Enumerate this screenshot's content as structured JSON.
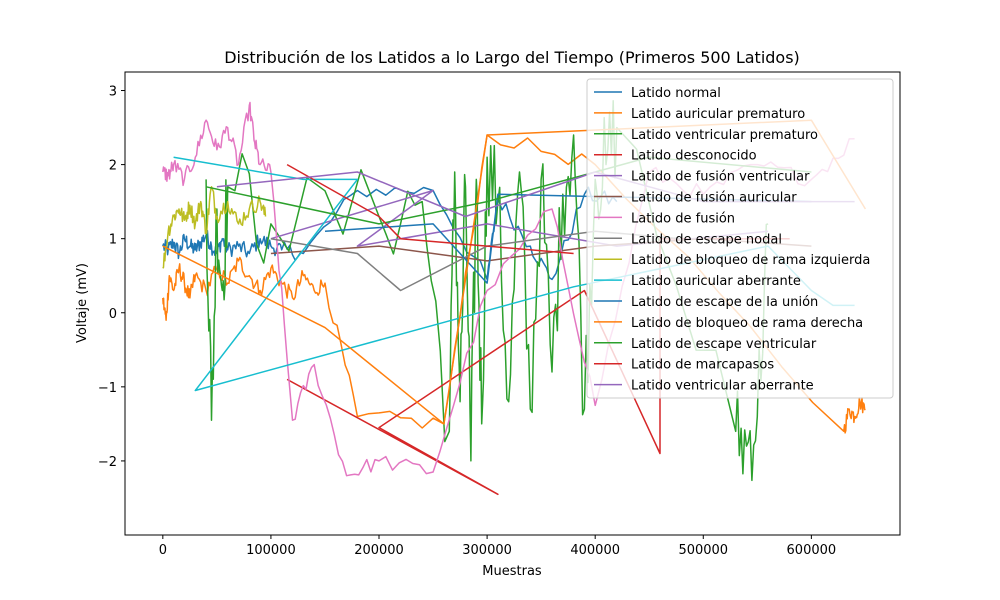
{
  "chart_data": {
    "type": "line",
    "title": "Distribución de los Latidos a lo Largo del Tiempo (Primeros 500 Latidos)",
    "xlabel": "Muestras",
    "ylabel": "Voltaje (mV)",
    "xlim": [
      -35000,
      682000
    ],
    "ylim": [
      -3.0,
      3.25
    ],
    "xticks": [
      0,
      100000,
      200000,
      300000,
      400000,
      500000,
      600000
    ],
    "xtick_labels": [
      "0",
      "100000",
      "200000",
      "300000",
      "400000",
      "500000",
      "600000"
    ],
    "yticks": [
      -2,
      -1,
      0,
      1,
      2,
      3
    ],
    "ytick_labels": [
      "−2",
      "−1",
      "0",
      "1",
      "2",
      "3"
    ],
    "grid": false,
    "legend_position": "top-right",
    "series": [
      {
        "name": "Latido normal",
        "color": "#1f77b4",
        "kind": "cluster",
        "x": [
          0,
          5000,
          10000,
          15000,
          20000,
          25000,
          30000,
          35000,
          40000,
          45000,
          50000,
          55000,
          60000,
          70000,
          80000,
          90000,
          100000,
          110000,
          130000,
          180000,
          250000,
          300000,
          310000,
          340000,
          360000,
          390000,
          420000
        ],
        "y": [
          0.9,
          0.85,
          0.95,
          0.8,
          1.0,
          0.9,
          0.85,
          0.95,
          1.05,
          0.9,
          0.8,
          1.0,
          0.85,
          0.9,
          0.8,
          1.0,
          0.9,
          0.85,
          0.8,
          1.65,
          1.65,
          0.45,
          1.55,
          0.9,
          0.45,
          1.6,
          1.5
        ]
      },
      {
        "name": "Latido auricular prematuro",
        "color": "#ff7f0e",
        "kind": "cluster",
        "x": [
          0,
          3000,
          6000,
          10000,
          15000,
          20000,
          25000,
          30000,
          40000,
          50000,
          60000,
          70000,
          80000,
          90000,
          100000,
          110000,
          120000,
          130000,
          140000,
          150000,
          180000,
          260000,
          300000,
          400000,
          630000,
          635000,
          640000,
          645000,
          650000
        ],
        "y": [
          0.2,
          -0.1,
          0.5,
          0.3,
          0.6,
          0.4,
          0.2,
          0.5,
          0.3,
          0.6,
          0.4,
          0.7,
          0.5,
          0.3,
          0.6,
          0.4,
          0.2,
          0.5,
          0.3,
          0.4,
          -1.4,
          -1.5,
          2.4,
          2.0,
          -1.6,
          -1.3,
          -1.4,
          -1.2,
          -1.3
        ]
      },
      {
        "name": "Latido ventricular prematuro",
        "color": "#2ca02c",
        "kind": "spikes",
        "x": [
          40000,
          45000,
          50000,
          55000,
          60000,
          100000,
          200000,
          240000,
          265000,
          270000,
          275000,
          280000,
          285000,
          290000,
          295000,
          300000,
          310000,
          320000,
          330000,
          340000,
          350000,
          360000,
          370000,
          380000,
          390000,
          400000,
          410000,
          420000,
          530000,
          540000,
          550000,
          560000
        ],
        "y": [
          1.8,
          -1.45,
          1.4,
          0.3,
          1.7,
          1.2,
          1.3,
          1.5,
          -1.6,
          1.9,
          -1.2,
          1.7,
          -2.0,
          1.8,
          -1.5,
          2.1,
          1.5,
          -1.2,
          1.9,
          -1.3,
          1.8,
          -0.8,
          1.6,
          2.4,
          -1.3,
          1.8,
          2.0,
          2.5,
          -1.6,
          -1.8,
          -1.4,
          1.2
        ]
      },
      {
        "name": "Latido desconocido",
        "color": "#d62728",
        "kind": "line",
        "x": [
          115000,
          310000,
          200000,
          390000,
          460000,
          460000,
          580000
        ],
        "y": [
          -0.9,
          -2.45,
          -1.55,
          0.3,
          -1.9,
          1.0,
          1.0
        ]
      },
      {
        "name": "Latido de fusión ventricular",
        "color": "#9467bd",
        "kind": "line",
        "x": [
          100000,
          250000,
          180000,
          300000,
          420000,
          560000
        ],
        "y": [
          1.0,
          1.65,
          0.9,
          1.2,
          0.9,
          1.1
        ]
      },
      {
        "name": "Latido de fusión auricular",
        "color": "#8c564b",
        "kind": "line",
        "x": [
          100000,
          200000,
          300000,
          400000,
          500000,
          600000
        ],
        "y": [
          0.8,
          0.9,
          0.7,
          0.9,
          1.0,
          0.9
        ]
      },
      {
        "name": "Latido de fusión",
        "color": "#e377c2",
        "kind": "cluster",
        "x": [
          0,
          5000,
          10000,
          20000,
          30000,
          40000,
          50000,
          60000,
          70000,
          80000,
          85000,
          90000,
          100000,
          120000,
          140000,
          170000,
          200000,
          250000,
          300000,
          360000,
          400000,
          450000,
          500000,
          550000,
          600000,
          640000
        ],
        "y": [
          1.9,
          1.85,
          2.0,
          1.8,
          2.1,
          2.6,
          2.2,
          2.5,
          2.0,
          2.8,
          2.3,
          2.0,
          1.9,
          -1.45,
          -0.7,
          -2.2,
          -2.0,
          -2.15,
          0.3,
          1.4,
          -1.25,
          1.9,
          1.6,
          2.0,
          1.8,
          2.35
        ]
      },
      {
        "name": "Latido de escape nodal",
        "color": "#7f7f7f",
        "kind": "line",
        "x": [
          100000,
          180000,
          220000,
          300000,
          400000,
          480000
        ],
        "y": [
          1.0,
          0.8,
          0.3,
          0.9,
          1.1,
          1.0
        ]
      },
      {
        "name": "Latido de bloqueo de rama izquierda",
        "color": "#bcbd22",
        "kind": "cluster",
        "x": [
          0,
          5000,
          10000,
          15000,
          20000,
          25000,
          30000,
          35000,
          40000,
          45000,
          50000,
          60000,
          70000,
          80000,
          90000,
          95000
        ],
        "y": [
          0.6,
          1.1,
          1.3,
          1.4,
          1.25,
          1.45,
          1.2,
          1.5,
          1.1,
          1.7,
          1.3,
          1.5,
          1.2,
          1.4,
          1.5,
          1.3
        ]
      },
      {
        "name": "Latido auricular aberrante",
        "color": "#17becf",
        "kind": "line",
        "x": [
          10000,
          130000,
          180000,
          30000,
          380000,
          560000,
          600000,
          620000,
          640000
        ],
        "y": [
          2.1,
          1.8,
          1.8,
          -1.05,
          0.35,
          0.9,
          0.3,
          0.1,
          0.1
        ]
      },
      {
        "name": "Latido de escape de la unión",
        "color": "#1f77b4",
        "kind": "line",
        "x": [
          150000,
          250000,
          300000,
          310000,
          600000
        ],
        "y": [
          1.1,
          1.2,
          0.4,
          1.6,
          1.5
        ]
      },
      {
        "name": "Latido de bloqueo de rama derecha",
        "color": "#ff7f0e",
        "kind": "line",
        "x": [
          0,
          150000,
          260000,
          300000,
          600000,
          650000
        ],
        "y": [
          0.9,
          -0.2,
          -1.5,
          2.4,
          2.6,
          1.4
        ]
      },
      {
        "name": "Latido de escape ventricular",
        "color": "#2ca02c",
        "kind": "line",
        "x": [
          40000,
          200000,
          300000,
          450000,
          600000
        ],
        "y": [
          1.7,
          1.2,
          1.5,
          2.1,
          1.9
        ]
      },
      {
        "name": "Latido de marcapasos",
        "color": "#d62728",
        "kind": "line",
        "x": [
          115000,
          200000,
          220000,
          380000
        ],
        "y": [
          2.0,
          1.3,
          1.0,
          0.8
        ]
      },
      {
        "name": "Latido ventricular aberrante",
        "color": "#9467bd",
        "kind": "line",
        "x": [
          50000,
          180000,
          280000,
          400000,
          500000,
          640000
        ],
        "y": [
          1.7,
          1.9,
          1.3,
          1.9,
          1.5,
          1.5
        ]
      }
    ]
  }
}
